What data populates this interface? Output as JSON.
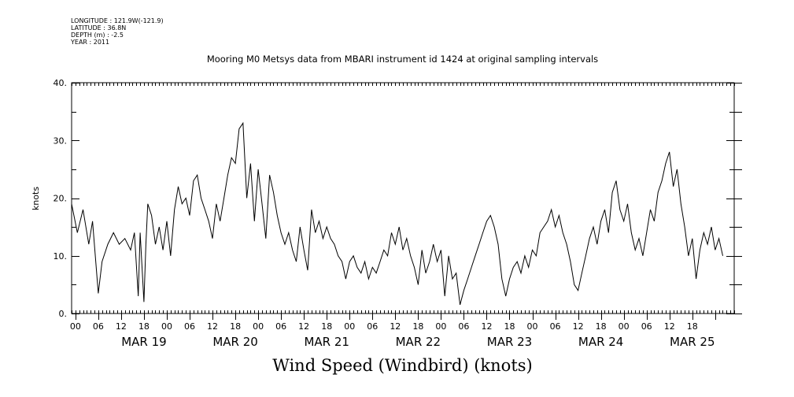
{
  "meta": {
    "longitude": "LONGITUDE : 121.9W(-121.9)",
    "latitude": "LATITUDE : 36.8N",
    "depth": "DEPTH (m) : -2.5",
    "year": "YEAR : 2011"
  },
  "chart_data": {
    "type": "line",
    "title": "Mooring M0 Metsys data from MBARI instrument id 1424 at original sampling intervals",
    "xlabel": "Wind Speed (Windbird) (knots)",
    "ylabel": "knots",
    "ylim": [
      0,
      40
    ],
    "xlim": [
      "2011-03-18T17:00",
      "2011-03-25T23:00"
    ],
    "y_ticks": [
      "0.",
      "10.",
      "20.",
      "30.",
      "40."
    ],
    "hour_ticks": [
      "00",
      "06",
      "12",
      "18",
      "00",
      "06",
      "12",
      "18",
      "00",
      "06",
      "12",
      "18",
      "00",
      "06",
      "12",
      "18",
      "00",
      "06",
      "12",
      "18",
      "00",
      "06",
      "12",
      "18",
      "00",
      "06",
      "12",
      "18"
    ],
    "day_labels": [
      "MAR 19",
      "MAR 20",
      "MAR 21",
      "MAR 22",
      "MAR 23",
      "MAR 24",
      "MAR 25"
    ],
    "grid": false,
    "legend": "none",
    "series": [
      {
        "color": "#000000",
        "points": [
          [
            "2011-03-18T17:00",
            19
          ],
          [
            "2011-03-18T18:30",
            14
          ],
          [
            "2011-03-18T20:00",
            18
          ],
          [
            "2011-03-18T21:30",
            12
          ],
          [
            "2011-03-18T22:30",
            16
          ],
          [
            "2011-03-19T00:00",
            3.5
          ],
          [
            "2011-03-19T01:00",
            9
          ],
          [
            "2011-03-19T02:30",
            12
          ],
          [
            "2011-03-19T04:00",
            14
          ],
          [
            "2011-03-19T05:30",
            12
          ],
          [
            "2011-03-19T07:00",
            13
          ],
          [
            "2011-03-19T08:30",
            11
          ],
          [
            "2011-03-19T09:30",
            14
          ],
          [
            "2011-03-19T10:30",
            3
          ],
          [
            "2011-03-19T11:00",
            14
          ],
          [
            "2011-03-19T12:00",
            2
          ],
          [
            "2011-03-19T12:30",
            12
          ],
          [
            "2011-03-19T13:00",
            19
          ],
          [
            "2011-03-19T14:00",
            17
          ],
          [
            "2011-03-19T15:00",
            12
          ],
          [
            "2011-03-19T16:00",
            15
          ],
          [
            "2011-03-19T17:00",
            11
          ],
          [
            "2011-03-19T18:00",
            16
          ],
          [
            "2011-03-19T19:00",
            10
          ],
          [
            "2011-03-19T20:00",
            18
          ],
          [
            "2011-03-19T21:00",
            22
          ],
          [
            "2011-03-19T22:00",
            19
          ],
          [
            "2011-03-19T23:00",
            20
          ],
          [
            "2011-03-20T00:00",
            17
          ],
          [
            "2011-03-20T01:00",
            23
          ],
          [
            "2011-03-20T02:00",
            24
          ],
          [
            "2011-03-20T03:00",
            20
          ],
          [
            "2011-03-20T04:00",
            18
          ],
          [
            "2011-03-20T05:00",
            16
          ],
          [
            "2011-03-20T06:00",
            13
          ],
          [
            "2011-03-20T07:00",
            19
          ],
          [
            "2011-03-20T08:00",
            16
          ],
          [
            "2011-03-20T09:00",
            20
          ],
          [
            "2011-03-20T10:00",
            24
          ],
          [
            "2011-03-20T11:00",
            27
          ],
          [
            "2011-03-20T12:00",
            26
          ],
          [
            "2011-03-20T13:00",
            32
          ],
          [
            "2011-03-20T14:00",
            33
          ],
          [
            "2011-03-20T15:00",
            20
          ],
          [
            "2011-03-20T16:00",
            26
          ],
          [
            "2011-03-20T17:00",
            16
          ],
          [
            "2011-03-20T18:00",
            25
          ],
          [
            "2011-03-20T19:00",
            19
          ],
          [
            "2011-03-20T20:00",
            13
          ],
          [
            "2011-03-20T21:00",
            24
          ],
          [
            "2011-03-20T22:00",
            21
          ],
          [
            "2011-03-20T23:00",
            17
          ],
          [
            "2011-03-21T00:00",
            14
          ],
          [
            "2011-03-21T01:00",
            12
          ],
          [
            "2011-03-21T02:00",
            14
          ],
          [
            "2011-03-21T03:00",
            11
          ],
          [
            "2011-03-21T04:00",
            9
          ],
          [
            "2011-03-21T05:00",
            15
          ],
          [
            "2011-03-21T06:00",
            11
          ],
          [
            "2011-03-21T07:00",
            7.5
          ],
          [
            "2011-03-21T08:00",
            18
          ],
          [
            "2011-03-21T09:00",
            14
          ],
          [
            "2011-03-21T10:00",
            16
          ],
          [
            "2011-03-21T11:00",
            13
          ],
          [
            "2011-03-21T12:00",
            15
          ],
          [
            "2011-03-21T13:00",
            13
          ],
          [
            "2011-03-21T14:00",
            12
          ],
          [
            "2011-03-21T15:00",
            10
          ],
          [
            "2011-03-21T16:00",
            9
          ],
          [
            "2011-03-21T17:00",
            6
          ],
          [
            "2011-03-21T18:00",
            9
          ],
          [
            "2011-03-21T19:00",
            10
          ],
          [
            "2011-03-21T20:00",
            8
          ],
          [
            "2011-03-21T21:00",
            7
          ],
          [
            "2011-03-21T22:00",
            9
          ],
          [
            "2011-03-21T23:00",
            6
          ],
          [
            "2011-03-22T00:00",
            8
          ],
          [
            "2011-03-22T01:00",
            7
          ],
          [
            "2011-03-22T02:00",
            9
          ],
          [
            "2011-03-22T03:00",
            11
          ],
          [
            "2011-03-22T04:00",
            10
          ],
          [
            "2011-03-22T05:00",
            14
          ],
          [
            "2011-03-22T06:00",
            12
          ],
          [
            "2011-03-22T07:00",
            15
          ],
          [
            "2011-03-22T08:00",
            11
          ],
          [
            "2011-03-22T09:00",
            13
          ],
          [
            "2011-03-22T10:00",
            10
          ],
          [
            "2011-03-22T11:00",
            8
          ],
          [
            "2011-03-22T12:00",
            5
          ],
          [
            "2011-03-22T13:00",
            11
          ],
          [
            "2011-03-22T14:00",
            7
          ],
          [
            "2011-03-22T15:00",
            9
          ],
          [
            "2011-03-22T16:00",
            12
          ],
          [
            "2011-03-22T17:00",
            9
          ],
          [
            "2011-03-22T18:00",
            11
          ],
          [
            "2011-03-22T19:00",
            3
          ],
          [
            "2011-03-22T20:00",
            10
          ],
          [
            "2011-03-22T21:00",
            6
          ],
          [
            "2011-03-22T22:00",
            7
          ],
          [
            "2011-03-22T23:00",
            1.5
          ],
          [
            "2011-03-23T00:00",
            4
          ],
          [
            "2011-03-23T01:00",
            6
          ],
          [
            "2011-03-23T02:00",
            8
          ],
          [
            "2011-03-23T03:00",
            10
          ],
          [
            "2011-03-23T04:00",
            12
          ],
          [
            "2011-03-23T05:00",
            14
          ],
          [
            "2011-03-23T06:00",
            16
          ],
          [
            "2011-03-23T07:00",
            17
          ],
          [
            "2011-03-23T08:00",
            15
          ],
          [
            "2011-03-23T09:00",
            12
          ],
          [
            "2011-03-23T10:00",
            6
          ],
          [
            "2011-03-23T11:00",
            3
          ],
          [
            "2011-03-23T12:00",
            6
          ],
          [
            "2011-03-23T13:00",
            8
          ],
          [
            "2011-03-23T14:00",
            9
          ],
          [
            "2011-03-23T15:00",
            7
          ],
          [
            "2011-03-23T16:00",
            10
          ],
          [
            "2011-03-23T17:00",
            8
          ],
          [
            "2011-03-23T18:00",
            11
          ],
          [
            "2011-03-23T19:00",
            10
          ],
          [
            "2011-03-23T20:00",
            14
          ],
          [
            "2011-03-23T21:00",
            15
          ],
          [
            "2011-03-23T22:00",
            16
          ],
          [
            "2011-03-23T23:00",
            18
          ],
          [
            "2011-03-24T00:00",
            15
          ],
          [
            "2011-03-24T01:00",
            17
          ],
          [
            "2011-03-24T02:00",
            14
          ],
          [
            "2011-03-24T03:00",
            12
          ],
          [
            "2011-03-24T04:00",
            9
          ],
          [
            "2011-03-24T05:00",
            5
          ],
          [
            "2011-03-24T06:00",
            4
          ],
          [
            "2011-03-24T07:00",
            7
          ],
          [
            "2011-03-24T08:00",
            10
          ],
          [
            "2011-03-24T09:00",
            13
          ],
          [
            "2011-03-24T10:00",
            15
          ],
          [
            "2011-03-24T11:00",
            12
          ],
          [
            "2011-03-24T12:00",
            16
          ],
          [
            "2011-03-24T13:00",
            18
          ],
          [
            "2011-03-24T14:00",
            14
          ],
          [
            "2011-03-24T15:00",
            21
          ],
          [
            "2011-03-24T16:00",
            23
          ],
          [
            "2011-03-24T17:00",
            18
          ],
          [
            "2011-03-24T18:00",
            16
          ],
          [
            "2011-03-24T19:00",
            19
          ],
          [
            "2011-03-24T20:00",
            14
          ],
          [
            "2011-03-24T21:00",
            11
          ],
          [
            "2011-03-24T22:00",
            13
          ],
          [
            "2011-03-24T23:00",
            10
          ],
          [
            "2011-03-25T00:00",
            14
          ],
          [
            "2011-03-25T01:00",
            18
          ],
          [
            "2011-03-25T02:00",
            16
          ],
          [
            "2011-03-25T03:00",
            21
          ],
          [
            "2011-03-25T04:00",
            23
          ],
          [
            "2011-03-25T05:00",
            26
          ],
          [
            "2011-03-25T06:00",
            28
          ],
          [
            "2011-03-25T07:00",
            22
          ],
          [
            "2011-03-25T08:00",
            25
          ],
          [
            "2011-03-25T09:00",
            19
          ],
          [
            "2011-03-25T10:00",
            15
          ],
          [
            "2011-03-25T11:00",
            10
          ],
          [
            "2011-03-25T12:00",
            13
          ],
          [
            "2011-03-25T13:00",
            6
          ],
          [
            "2011-03-25T14:00",
            11
          ],
          [
            "2011-03-25T15:00",
            14
          ],
          [
            "2011-03-25T16:00",
            12
          ],
          [
            "2011-03-25T17:00",
            15
          ],
          [
            "2011-03-25T18:00",
            11
          ],
          [
            "2011-03-25T19:00",
            13
          ],
          [
            "2011-03-25T20:00",
            10
          ]
        ]
      }
    ]
  }
}
